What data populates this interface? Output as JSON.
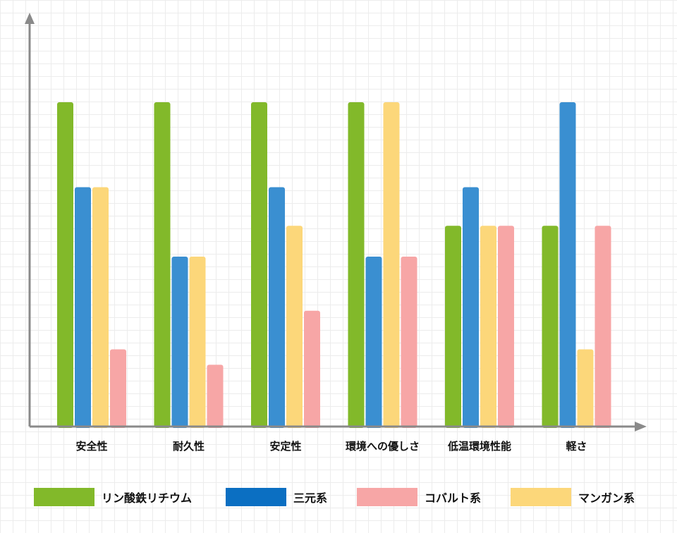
{
  "chart_data": {
    "type": "bar",
    "title": "",
    "xlabel": "",
    "ylabel": "",
    "ylim": [
      0,
      5
    ],
    "grid": true,
    "legend_position": "bottom",
    "categories": [
      "安全性",
      "耐久性",
      "安定性",
      "環境への優しさ",
      "低温環境性能",
      "軽さ"
    ],
    "series": [
      {
        "name": "リン酸鉄リチウム",
        "color": "#82b92a",
        "values": [
          4.2,
          4.2,
          4.2,
          4.2,
          2.6,
          2.6
        ]
      },
      {
        "name": "三元系",
        "color": "#3a8fd1",
        "values": [
          3.1,
          2.2,
          3.1,
          2.2,
          3.1,
          4.2
        ]
      },
      {
        "name": "マンガン系",
        "color": "#fcd77a",
        "values": [
          3.1,
          2.2,
          2.6,
          4.2,
          2.6,
          1.0
        ]
      },
      {
        "name": "コバルト系",
        "color": "#f7a6a6",
        "values": [
          1.0,
          0.8,
          1.5,
          2.2,
          2.6,
          2.6
        ]
      }
    ],
    "legend": [
      {
        "label": "リン酸鉄リチウム",
        "color": "#82b92a"
      },
      {
        "label": "三元系",
        "color": "#0b6fc2"
      },
      {
        "label": "コバルト系",
        "color": "#f7a6a6"
      },
      {
        "label": "マンガン系",
        "color": "#fcd77a"
      }
    ]
  },
  "axis_color": "#8a8a8a"
}
